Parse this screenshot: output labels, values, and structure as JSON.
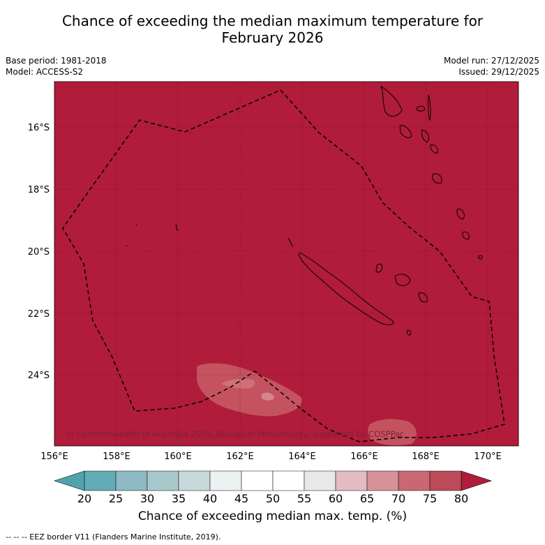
{
  "title_line1": "Chance of exceeding the median maximum temperature for",
  "title_line2": "February 2026",
  "base_period": "Base period: 1981-2018",
  "model": "Model: ACCESS-S2",
  "model_run": "Model run: 27/12/2025",
  "issued": "Issued: 29/12/2025",
  "copyright": "© Commonwealth of Australia 2025, Bureau of Meteorology, supported by COSPPac",
  "colorbar_title": "Chance of exceeding median max. temp. (%)",
  "footnote": "--  --  -- EEZ border V11 (Flanders Marine Institute, 2019).",
  "colors": {
    "background_field": "#b01c3a",
    "bin_60_65": "#e0b7bd",
    "bin_65_70": "#d38d95",
    "bin_70_75": "#c66470",
    "bin_75_80": "#ba4654",
    "gridline": "#5a0f1d"
  },
  "lat_labels": [
    "16°S",
    "18°S",
    "20°S",
    "22°S",
    "24°S"
  ],
  "lon_labels": [
    "156°E",
    "158°E",
    "160°E",
    "162°E",
    "164°E",
    "166°E",
    "168°E",
    "170°E"
  ],
  "colorbar": {
    "tick_labels": [
      "20",
      "25",
      "30",
      "35",
      "40",
      "45",
      "50",
      "55",
      "60",
      "65",
      "70",
      "75",
      "80"
    ],
    "bin_colors": [
      "#64abb8",
      "#8db9c3",
      "#a9c8cc",
      "#c8d9dc",
      "#ecf1f2",
      "#ffffff",
      "#ffffff",
      "#e8e8e8",
      "#e2bcc0",
      "#d69198",
      "#c96872",
      "#bc4a58"
    ],
    "under_color": "#52a2ae",
    "over_color": "#b01c3a"
  }
}
